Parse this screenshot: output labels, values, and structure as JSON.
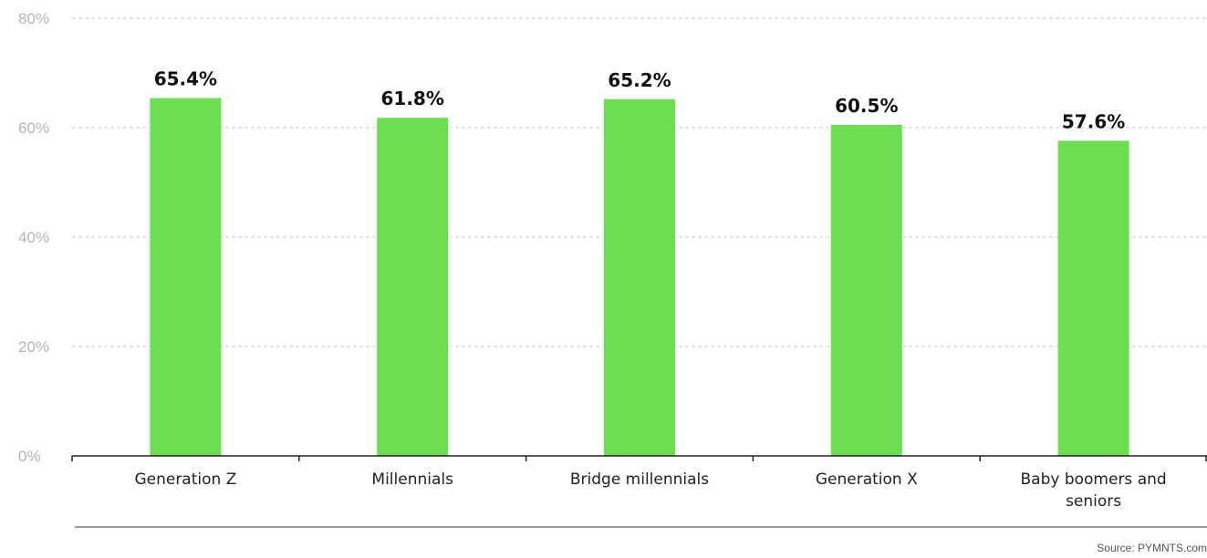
{
  "chart_data": {
    "type": "bar",
    "categories": [
      "Generation Z",
      "Millennials",
      "Bridge millennials",
      "Generation X",
      "Baby boomers and seniors"
    ],
    "values": [
      65.4,
      61.8,
      65.2,
      60.5,
      57.6
    ],
    "value_labels": [
      "65.4%",
      "61.8%",
      "65.2%",
      "60.5%",
      "57.6%"
    ],
    "y_ticks": [
      0,
      20,
      40,
      60,
      80
    ],
    "y_tick_labels": [
      "0%",
      "20%",
      "40%",
      "60%",
      "80%"
    ],
    "ylim": [
      0,
      80
    ],
    "grid": true,
    "bar_color": "#6dde52"
  },
  "footer": {
    "source": "Source: PYMNTS.com"
  }
}
